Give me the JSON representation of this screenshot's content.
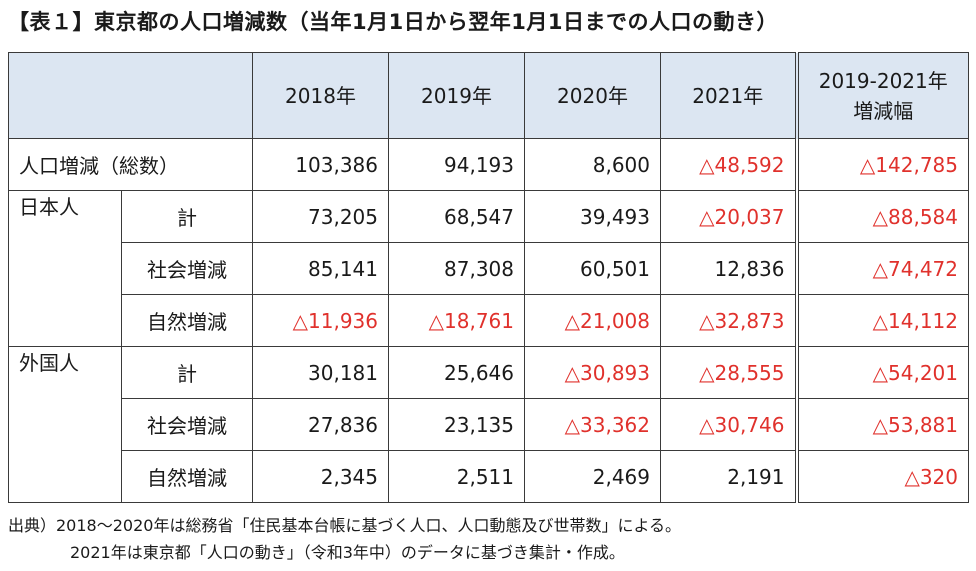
{
  "title": "【表１】東京都の人口増減数（当年1月1日から翌年1月1日までの人口の動き）",
  "headers": {
    "y2018": "2018年",
    "y2019": "2019年",
    "y2020": "2020年",
    "y2021": "2021年",
    "diff_line1": "2019-2021年",
    "diff_line2": "増減幅"
  },
  "rows": {
    "total": {
      "label": "人口増減（総数）",
      "values": [
        "103,386",
        "94,193",
        "8,600",
        "△48,592",
        "△142,785"
      ]
    },
    "japanese": {
      "group": "日本人",
      "subtotal": {
        "label": "計",
        "values": [
          "73,205",
          "68,547",
          "39,493",
          "△20,037",
          "△88,584"
        ]
      },
      "social": {
        "label": "社会増減",
        "values": [
          "85,141",
          "87,308",
          "60,501",
          "12,836",
          "△74,472"
        ]
      },
      "natural": {
        "label": "自然増減",
        "values": [
          "△11,936",
          "△18,761",
          "△21,008",
          "△32,873",
          "△14,112"
        ]
      }
    },
    "foreign": {
      "group": "外国人",
      "subtotal": {
        "label": "計",
        "values": [
          "30,181",
          "25,646",
          "△30,893",
          "△28,555",
          "△54,201"
        ]
      },
      "social": {
        "label": "社会増減",
        "values": [
          "27,836",
          "23,135",
          "△33,362",
          "△30,746",
          "△53,881"
        ]
      },
      "natural": {
        "label": "自然増減",
        "values": [
          "2,345",
          "2,511",
          "2,469",
          "2,191",
          "△320"
        ]
      }
    }
  },
  "notes": {
    "line1": "出典）2018～2020年は総務省「住民基本台帳に基づく人口、人口動態及び世帯数」による。",
    "line2": "2021年は東京都「人口の動き」（令和3年中）のデータに基づき集計・作成。"
  },
  "colors": {
    "header_bg": "#dce6f2",
    "negative": "#e0312c",
    "border": "#3a3a3a"
  }
}
